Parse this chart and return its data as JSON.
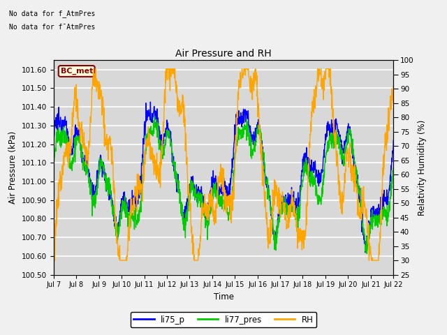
{
  "title": "Air Pressure and RH",
  "xlabel": "Time",
  "ylabel_left": "Air Pressure (kPa)",
  "ylabel_right": "Relativity Humidity (%)",
  "left_ylim": [
    100.5,
    101.65
  ],
  "right_ylim": [
    25,
    100
  ],
  "left_yticks": [
    100.5,
    100.6,
    100.7,
    100.8,
    100.9,
    101.0,
    101.1,
    101.2,
    101.3,
    101.4,
    101.5,
    101.6
  ],
  "right_yticks": [
    25,
    30,
    35,
    40,
    45,
    50,
    55,
    60,
    65,
    70,
    75,
    80,
    85,
    90,
    95,
    100
  ],
  "xtick_labels": [
    "Jul 7",
    "Jul 8",
    "Jul 9",
    "Jul 10",
    "Jul 11",
    "Jul 12",
    "Jul 13",
    "Jul 14",
    "Jul 15",
    "Jul 16",
    "Jul 17",
    "Jul 18",
    "Jul 19",
    "Jul 20",
    "Jul 21",
    "Jul 22"
  ],
  "color_li75": "#0000ff",
  "color_li77": "#00cc00",
  "color_rh": "#ffa500",
  "legend_labels": [
    "li75_p",
    "li77_pres",
    "RH"
  ],
  "annotation_text1": "No data for f_AtmPres",
  "annotation_text2": "No data for f¯AtmPres",
  "bc_met_label": "BC_met",
  "plot_bg": "#d8d8d8",
  "fig_bg": "#f0f0f0",
  "grid_color": "#ffffff"
}
